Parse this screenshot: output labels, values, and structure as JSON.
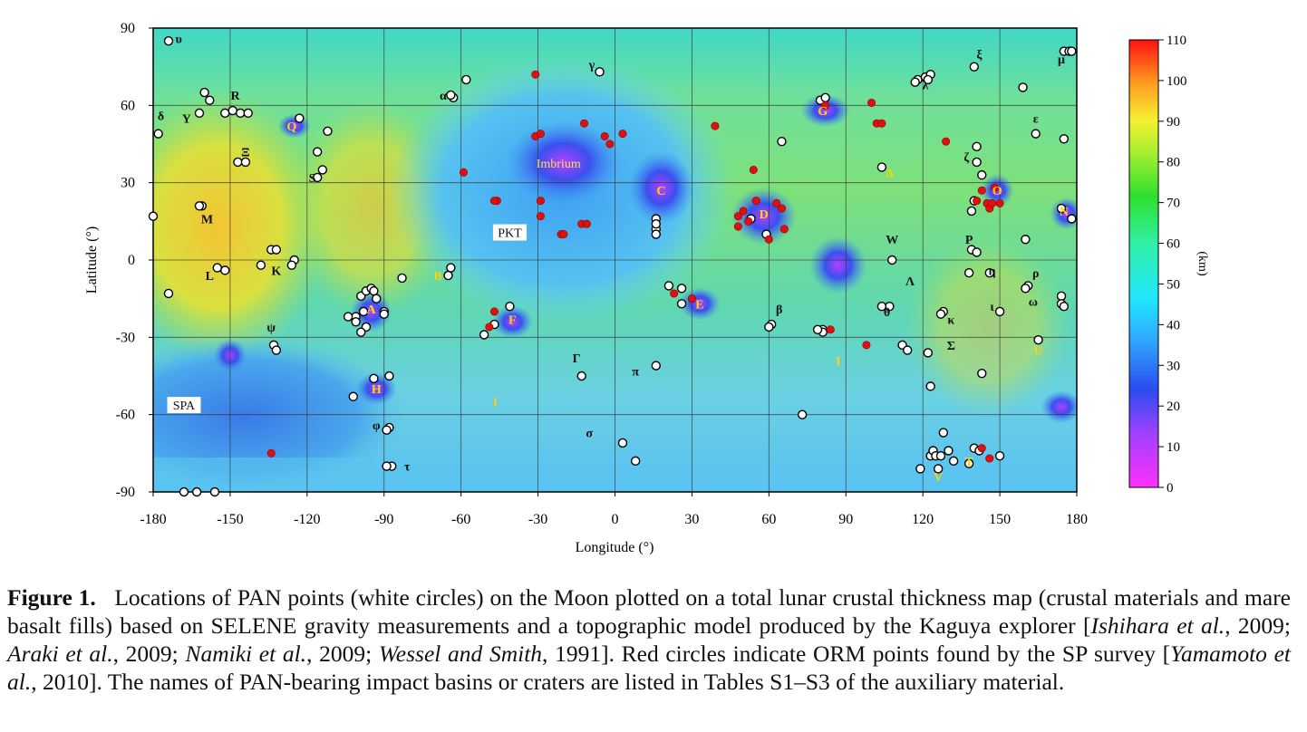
{
  "figure": {
    "x_axis": {
      "label": "Longitude (°)",
      "ticks": [
        "-180",
        "-150",
        "-120",
        "-90",
        "-60",
        "-30",
        "0",
        "30",
        "60",
        "90",
        "120",
        "150",
        "180"
      ],
      "range": [
        -180,
        180
      ]
    },
    "y_axis": {
      "label": "Latitude (°)",
      "ticks": [
        "90",
        "60",
        "30",
        "0",
        "-30",
        "-60",
        "-90"
      ],
      "range": [
        -90,
        90
      ]
    },
    "colorbar": {
      "unit": "(km)",
      "ticks": [
        "110",
        "100",
        "90",
        "80",
        "70",
        "60",
        "50",
        "40",
        "30",
        "20",
        "10",
        "0"
      ],
      "range": [
        0,
        110
      ]
    },
    "grid": true,
    "region_labels": [
      {
        "text": "Imbrium",
        "lon": -22,
        "lat": 37,
        "color": "#f4e24a"
      },
      {
        "text": "PKT",
        "lon": -41,
        "lat": 10,
        "color": "#111111",
        "boxed": true
      },
      {
        "text": "SPA",
        "lon": -168,
        "lat": -57,
        "color": "#111111",
        "boxed": true
      }
    ],
    "basin_letters": [
      {
        "t": "A",
        "lon": -95,
        "lat": -19,
        "c": "#ffd400"
      },
      {
        "t": "B",
        "lon": -69,
        "lat": -6,
        "c": "#ffd400"
      },
      {
        "t": "C",
        "lon": 18,
        "lat": 27,
        "c": "#ffd400"
      },
      {
        "t": "D",
        "lon": 58,
        "lat": 18,
        "c": "#ffd400"
      },
      {
        "t": "E",
        "lon": 33,
        "lat": -17,
        "c": "#ffd400"
      },
      {
        "t": "F",
        "lon": -40,
        "lat": -23,
        "c": "#ffd400"
      },
      {
        "t": "G",
        "lon": 81,
        "lat": 58,
        "c": "#ffd400"
      },
      {
        "t": "H",
        "lon": -93,
        "lat": -50,
        "c": "#ffd400"
      },
      {
        "t": "I",
        "lon": 87,
        "lat": -39,
        "c": "#ffd400"
      },
      {
        "t": "J",
        "lon": -47,
        "lat": -55,
        "c": "#ffd400"
      },
      {
        "t": "K",
        "lon": -132,
        "lat": -4,
        "c": "#111111"
      },
      {
        "t": "L",
        "lon": -158,
        "lat": -6,
        "c": "#111111"
      },
      {
        "t": "M",
        "lon": -159,
        "lat": 16,
        "c": "#111111"
      },
      {
        "t": "N",
        "lon": 175,
        "lat": 19,
        "c": "#ffd400"
      },
      {
        "t": "O",
        "lon": 149,
        "lat": 27,
        "c": "#ffd400"
      },
      {
        "t": "P",
        "lon": 138,
        "lat": 8,
        "c": "#111111"
      },
      {
        "t": "Q",
        "lon": -126,
        "lat": 52,
        "c": "#ffd400"
      },
      {
        "t": "R",
        "lon": -148,
        "lat": 64,
        "c": "#111111"
      },
      {
        "t": "S",
        "lon": -118,
        "lat": 32,
        "c": "#111111"
      },
      {
        "t": "T",
        "lon": 138,
        "lat": -78,
        "c": "#ffd400"
      },
      {
        "t": "U",
        "lon": 165,
        "lat": -35,
        "c": "#ffd400"
      },
      {
        "t": "V",
        "lon": 126,
        "lat": -84,
        "c": "#ffd400"
      },
      {
        "t": "W",
        "lon": 108,
        "lat": 8,
        "c": "#111111"
      },
      {
        "t": "Y",
        "lon": -167,
        "lat": 55,
        "c": "#111111"
      },
      {
        "t": "Σ",
        "lon": 131,
        "lat": -33,
        "c": "#111111"
      },
      {
        "t": "Λ",
        "lon": 115,
        "lat": -8,
        "c": "#111111"
      },
      {
        "t": "Γ",
        "lon": -15,
        "lat": -38,
        "c": "#111111"
      },
      {
        "t": "Ξ",
        "lon": -144,
        "lat": 42,
        "c": "#111111"
      },
      {
        "t": "Δ",
        "lon": 107,
        "lat": 34,
        "c": "#ffd400"
      },
      {
        "t": "ψ",
        "lon": -134,
        "lat": -26,
        "c": "#111111"
      },
      {
        "t": "φ",
        "lon": -93,
        "lat": -64,
        "c": "#111111"
      },
      {
        "t": "τ",
        "lon": -81,
        "lat": -80,
        "c": "#111111"
      },
      {
        "t": "σ",
        "lon": -10,
        "lat": -67,
        "c": "#111111"
      },
      {
        "t": "π",
        "lon": 8,
        "lat": -43,
        "c": "#111111"
      },
      {
        "t": "β",
        "lon": 64,
        "lat": -19,
        "c": "#111111"
      },
      {
        "t": "θ",
        "lon": 106,
        "lat": -20,
        "c": "#111111"
      },
      {
        "t": "κ",
        "lon": 131,
        "lat": -23,
        "c": "#111111"
      },
      {
        "t": "η",
        "lon": 147,
        "lat": -4,
        "c": "#111111"
      },
      {
        "t": "ρ",
        "lon": 164,
        "lat": -5,
        "c": "#111111"
      },
      {
        "t": "ω",
        "lon": 163,
        "lat": -16,
        "c": "#111111"
      },
      {
        "t": "ι",
        "lon": 147,
        "lat": -18,
        "c": "#111111"
      },
      {
        "t": "ε",
        "lon": 164,
        "lat": 55,
        "c": "#111111"
      },
      {
        "t": "ζ",
        "lon": 137,
        "lat": 40,
        "c": "#111111"
      },
      {
        "t": "ξ",
        "lon": 142,
        "lat": 80,
        "c": "#111111"
      },
      {
        "t": "μ",
        "lon": 174,
        "lat": 78,
        "c": "#111111"
      },
      {
        "t": "λ",
        "lon": 121,
        "lat": 68,
        "c": "#111111"
      },
      {
        "t": "γ",
        "lon": -9,
        "lat": 76,
        "c": "#111111"
      },
      {
        "t": "α",
        "lon": -67,
        "lat": 64,
        "c": "#111111"
      },
      {
        "t": "υ",
        "lon": -170,
        "lat": 86,
        "c": "#111111"
      },
      {
        "t": "δ",
        "lon": -177,
        "lat": 56,
        "c": "#111111"
      }
    ],
    "pan_points": [
      [
        -174,
        85
      ],
      [
        -178,
        49
      ],
      [
        -180,
        17
      ],
      [
        -174,
        -13
      ],
      [
        -168,
        -90
      ],
      [
        -163,
        -90
      ],
      [
        -156,
        -90
      ],
      [
        -160,
        65
      ],
      [
        -158,
        62
      ],
      [
        -152,
        57
      ],
      [
        -149,
        58
      ],
      [
        -146,
        57
      ],
      [
        -143,
        57
      ],
      [
        -162,
        57
      ],
      [
        -147,
        38
      ],
      [
        -144,
        38
      ],
      [
        -161,
        21
      ],
      [
        -162,
        21
      ],
      [
        -155,
        -3
      ],
      [
        -152,
        -4
      ],
      [
        -134,
        4
      ],
      [
        -132,
        4
      ],
      [
        -138,
        -2
      ],
      [
        -125,
        0
      ],
      [
        -126,
        -2
      ],
      [
        -123,
        55
      ],
      [
        -112,
        50
      ],
      [
        -116,
        42
      ],
      [
        -114,
        35
      ],
      [
        -116,
        32
      ],
      [
        -63,
        63
      ],
      [
        -64,
        64
      ],
      [
        -58,
        70
      ],
      [
        -6,
        73
      ],
      [
        -101,
        -22
      ],
      [
        -98,
        -20
      ],
      [
        -99,
        -14
      ],
      [
        -97,
        -12
      ],
      [
        -95,
        -11
      ],
      [
        -94,
        -12
      ],
      [
        -93,
        -15
      ],
      [
        -90,
        -20
      ],
      [
        -90,
        -21
      ],
      [
        -97,
        -26
      ],
      [
        -99,
        -28
      ],
      [
        -104,
        -22
      ],
      [
        -101,
        -24
      ],
      [
        -88,
        -45
      ],
      [
        -94,
        -46
      ],
      [
        -102,
        -53
      ],
      [
        -88,
        -65
      ],
      [
        -89,
        -66
      ],
      [
        -87,
        -80
      ],
      [
        -89,
        -80
      ],
      [
        -83,
        -7
      ],
      [
        -64,
        -3
      ],
      [
        -65,
        -6
      ],
      [
        -133,
        -33
      ],
      [
        -132,
        -35
      ],
      [
        -51,
        -29
      ],
      [
        -47,
        -25
      ],
      [
        -41,
        -18
      ],
      [
        16,
        16
      ],
      [
        16,
        12
      ],
      [
        16,
        10
      ],
      [
        21,
        -10
      ],
      [
        26,
        -11
      ],
      [
        26,
        -17
      ],
      [
        61,
        -25
      ],
      [
        60,
        -26
      ],
      [
        59,
        10
      ],
      [
        53,
        16
      ],
      [
        81,
        -27
      ],
      [
        81,
        -28
      ],
      [
        79,
        -27
      ],
      [
        108,
        0
      ],
      [
        107,
        -18
      ],
      [
        104,
        -18
      ],
      [
        112,
        -33
      ],
      [
        114,
        -35
      ],
      [
        122,
        -36
      ],
      [
        123,
        -49
      ],
      [
        128,
        -20
      ],
      [
        127,
        -21
      ],
      [
        128,
        -67
      ],
      [
        130,
        -74
      ],
      [
        123,
        -76
      ],
      [
        124,
        -74
      ],
      [
        125,
        -76
      ],
      [
        127,
        -76
      ],
      [
        126,
        -81
      ],
      [
        132,
        -78
      ],
      [
        140,
        -73
      ],
      [
        142,
        -74
      ],
      [
        150,
        -76
      ],
      [
        138,
        -79
      ],
      [
        119,
        -81
      ],
      [
        80,
        62
      ],
      [
        82,
        63
      ],
      [
        65,
        46
      ],
      [
        104,
        36
      ],
      [
        118,
        70
      ],
      [
        121,
        71
      ],
      [
        123,
        72
      ],
      [
        122,
        70
      ],
      [
        117,
        69
      ],
      [
        140,
        75
      ],
      [
        159,
        67
      ],
      [
        164,
        49
      ],
      [
        175,
        47
      ],
      [
        174,
        20
      ],
      [
        178,
        16
      ],
      [
        160,
        8
      ],
      [
        161,
        -10
      ],
      [
        160,
        -11
      ],
      [
        174,
        -14
      ],
      [
        174,
        -17
      ],
      [
        175,
        -18
      ],
      [
        165,
        -31
      ],
      [
        150,
        -20
      ],
      [
        146,
        -5
      ],
      [
        139,
        4
      ],
      [
        141,
        3
      ],
      [
        138,
        -5
      ],
      [
        143,
        -44
      ],
      [
        141,
        38
      ],
      [
        143,
        33
      ],
      [
        140,
        23
      ],
      [
        139,
        19
      ],
      [
        141,
        44
      ],
      [
        175,
        81
      ],
      [
        177,
        81
      ],
      [
        178,
        81
      ],
      [
        3,
        -71
      ],
      [
        -13,
        -45
      ],
      [
        16,
        -41
      ],
      [
        8,
        -78
      ],
      [
        73,
        -60
      ],
      [
        16,
        14
      ]
    ],
    "orm_points": [
      [
        -31,
        72
      ],
      [
        -31,
        48
      ],
      [
        -29,
        49
      ],
      [
        -59,
        34
      ],
      [
        -46,
        23
      ],
      [
        -47,
        23
      ],
      [
        -29,
        23
      ],
      [
        -29,
        17
      ],
      [
        -21,
        10
      ],
      [
        -20,
        10
      ],
      [
        -13,
        14
      ],
      [
        -11,
        14
      ],
      [
        -12,
        53
      ],
      [
        -4,
        48
      ],
      [
        3,
        49
      ],
      [
        -2,
        45
      ],
      [
        39,
        52
      ],
      [
        54,
        35
      ],
      [
        50,
        19
      ],
      [
        48,
        17
      ],
      [
        55,
        23
      ],
      [
        63,
        22
      ],
      [
        66,
        12
      ],
      [
        65,
        20
      ],
      [
        48,
        13
      ],
      [
        52,
        15
      ],
      [
        60,
        8
      ],
      [
        23,
        -13
      ],
      [
        30,
        -15
      ],
      [
        -47,
        -20
      ],
      [
        -49,
        -26
      ],
      [
        -134,
        -75
      ],
      [
        98,
        -33
      ],
      [
        100,
        61
      ],
      [
        102,
        53
      ],
      [
        104,
        53
      ],
      [
        129,
        46
      ],
      [
        143,
        27
      ],
      [
        145,
        22
      ],
      [
        141,
        23
      ],
      [
        148,
        28
      ],
      [
        146,
        20
      ],
      [
        147,
        22
      ],
      [
        150,
        22
      ],
      [
        143,
        -73
      ],
      [
        146,
        -77
      ],
      [
        82,
        60
      ],
      [
        84,
        -27
      ]
    ],
    "basins": [
      {
        "lon": -20,
        "lat": 38,
        "rx": 14,
        "ry": 10
      },
      {
        "lon": 18,
        "lat": 28,
        "rx": 8,
        "ry": 9
      },
      {
        "lon": 58,
        "lat": 17,
        "rx": 8,
        "ry": 7
      },
      {
        "lon": 87,
        "lat": -2,
        "rx": 7,
        "ry": 7
      },
      {
        "lon": 33,
        "lat": -17,
        "rx": 5,
        "ry": 4
      },
      {
        "lon": -40,
        "lat": -24,
        "rx": 5,
        "ry": 4
      },
      {
        "lon": -95,
        "lat": -20,
        "rx": 5,
        "ry": 5
      },
      {
        "lon": -93,
        "lat": -50,
        "rx": 5,
        "ry": 4
      },
      {
        "lon": 82,
        "lat": 58,
        "rx": 6,
        "ry": 4
      },
      {
        "lon": 149,
        "lat": 27,
        "rx": 4,
        "ry": 4
      },
      {
        "lon": -150,
        "lat": -37,
        "rx": 4,
        "ry": 4
      },
      {
        "lon": -125,
        "lat": 52,
        "rx": 4,
        "ry": 3
      },
      {
        "lon": 174,
        "lat": -57,
        "rx": 5,
        "ry": 4
      },
      {
        "lon": 176,
        "lat": 18,
        "rx": 4,
        "ry": 4
      }
    ]
  },
  "caption": {
    "label": "Figure 1.",
    "parts": [
      {
        "t": "Locations of PAN points (white circles) on the Moon plotted on a total lunar crustal thickness map (crustal materials and mare basalt fills) based on SELENE gravity measurements and a topographic model produced by the Kaguya explorer [",
        "i": false
      },
      {
        "t": "Ishihara et al.",
        "i": true
      },
      {
        "t": ", 2009; ",
        "i": false
      },
      {
        "t": "Araki et al.",
        "i": true
      },
      {
        "t": ", 2009; ",
        "i": false
      },
      {
        "t": "Namiki et al.",
        "i": true
      },
      {
        "t": ", 2009; ",
        "i": false
      },
      {
        "t": "Wessel and Smith",
        "i": true
      },
      {
        "t": ", 1991]. Red circles indicate ORM points found by the SP survey [",
        "i": false
      },
      {
        "t": "Yamamoto et al.",
        "i": true
      },
      {
        "t": ", 2010]. The names of PAN-bearing impact basins or craters are listed in Tables S1–S3 of the auxiliary material.",
        "i": false
      }
    ]
  }
}
